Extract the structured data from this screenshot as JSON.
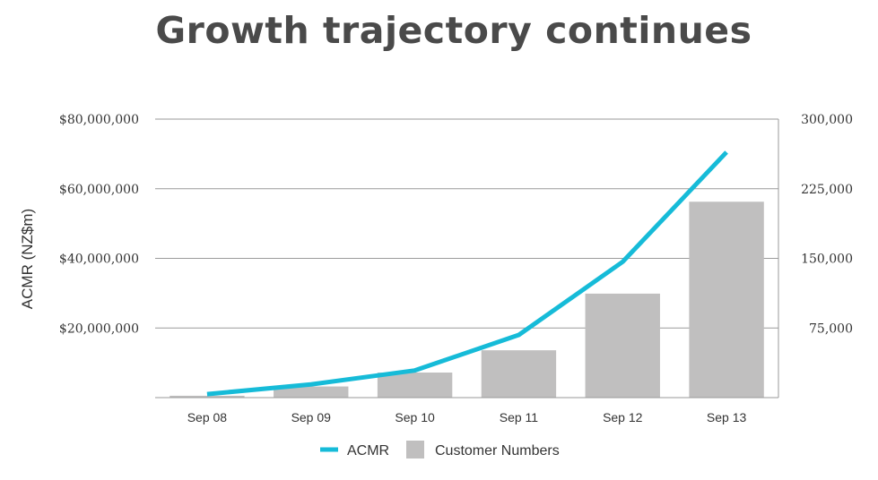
{
  "chart_data": {
    "type": "bar",
    "title": "Growth trajectory continues",
    "categories": [
      "Sep 08",
      "Sep 09",
      "Sep 10",
      "Sep 11",
      "Sep 12",
      "Sep 13"
    ],
    "ylabel": "ACMR (NZ$m)",
    "y_left": {
      "lim": [
        0,
        80000000
      ],
      "ticks": [
        20000000,
        40000000,
        60000000,
        80000000
      ],
      "tick_labels": [
        "$20,000,000",
        "$40,000,000",
        "$60,000,000",
        "$80,000,000"
      ]
    },
    "y_right": {
      "lim": [
        0,
        300000
      ],
      "ticks": [
        75000,
        150000,
        225000,
        300000
      ],
      "tick_labels": [
        "75,000",
        "150,000",
        "225,000",
        "300,000"
      ]
    },
    "grid": true,
    "legend_position": "bottom",
    "series": [
      {
        "name": "ACMR",
        "type": "line",
        "axis": "left",
        "color": "#16bbd8",
        "values": [
          1000000,
          3800000,
          7800000,
          18000000,
          39000000,
          70500000
        ]
      },
      {
        "name": "Customer Numbers",
        "type": "bar",
        "axis": "right",
        "color": "#c0bfbf",
        "values": [
          2000,
          12000,
          27000,
          51000,
          112000,
          211000
        ]
      }
    ]
  }
}
